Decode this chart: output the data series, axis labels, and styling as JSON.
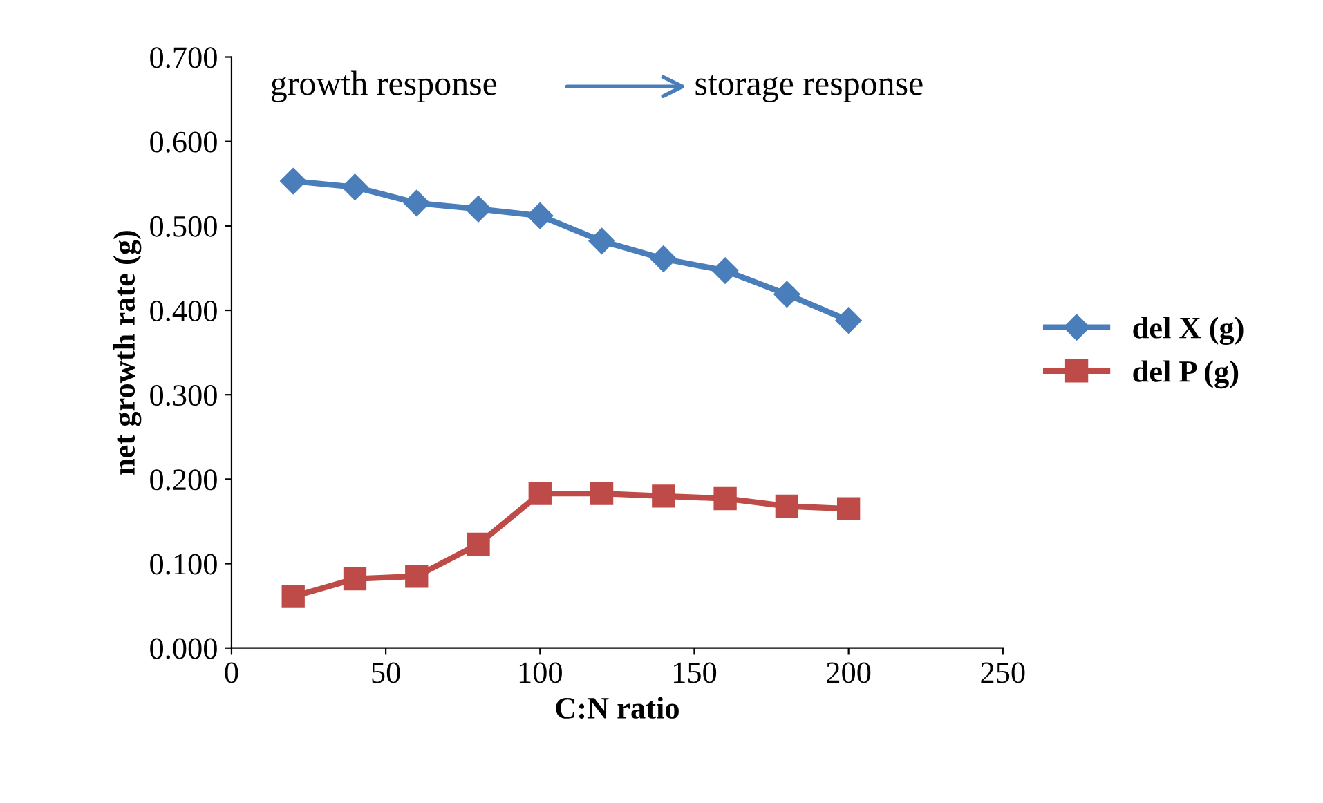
{
  "chart_data": {
    "type": "line",
    "xlabel": "C:N ratio",
    "ylabel": "net growth rate (g)",
    "x": [
      20,
      40,
      60,
      80,
      100,
      120,
      140,
      160,
      180,
      200
    ],
    "series": [
      {
        "name": "del X (g)",
        "color": "#4a7ebb",
        "marker": "diamond",
        "values": [
          0.553,
          0.546,
          0.527,
          0.52,
          0.512,
          0.482,
          0.461,
          0.447,
          0.419,
          0.388
        ]
      },
      {
        "name": "del P (g)",
        "color": "#be4b48",
        "marker": "square",
        "values": [
          0.061,
          0.082,
          0.085,
          0.123,
          0.183,
          0.183,
          0.18,
          0.177,
          0.168,
          0.165
        ]
      }
    ],
    "xlim": [
      0,
      250
    ],
    "xticks": [
      0,
      50,
      100,
      150,
      200,
      250
    ],
    "ylim": [
      0,
      0.7
    ],
    "yticks": [
      {
        "value": 0,
        "label": "0.000"
      },
      {
        "value": 0.1,
        "label": "0.100"
      },
      {
        "value": 0.2,
        "label": "0.200"
      },
      {
        "value": 0.3,
        "label": "0.300"
      },
      {
        "value": 0.4,
        "label": "0.400"
      },
      {
        "value": 0.5,
        "label": "0.500"
      },
      {
        "value": 0.6,
        "label": "0.600"
      },
      {
        "value": 0.7,
        "label": "0.700"
      }
    ],
    "annotations": [
      "growth response",
      "storage response"
    ],
    "legend": "right",
    "grid": false,
    "line_style": "solid"
  }
}
